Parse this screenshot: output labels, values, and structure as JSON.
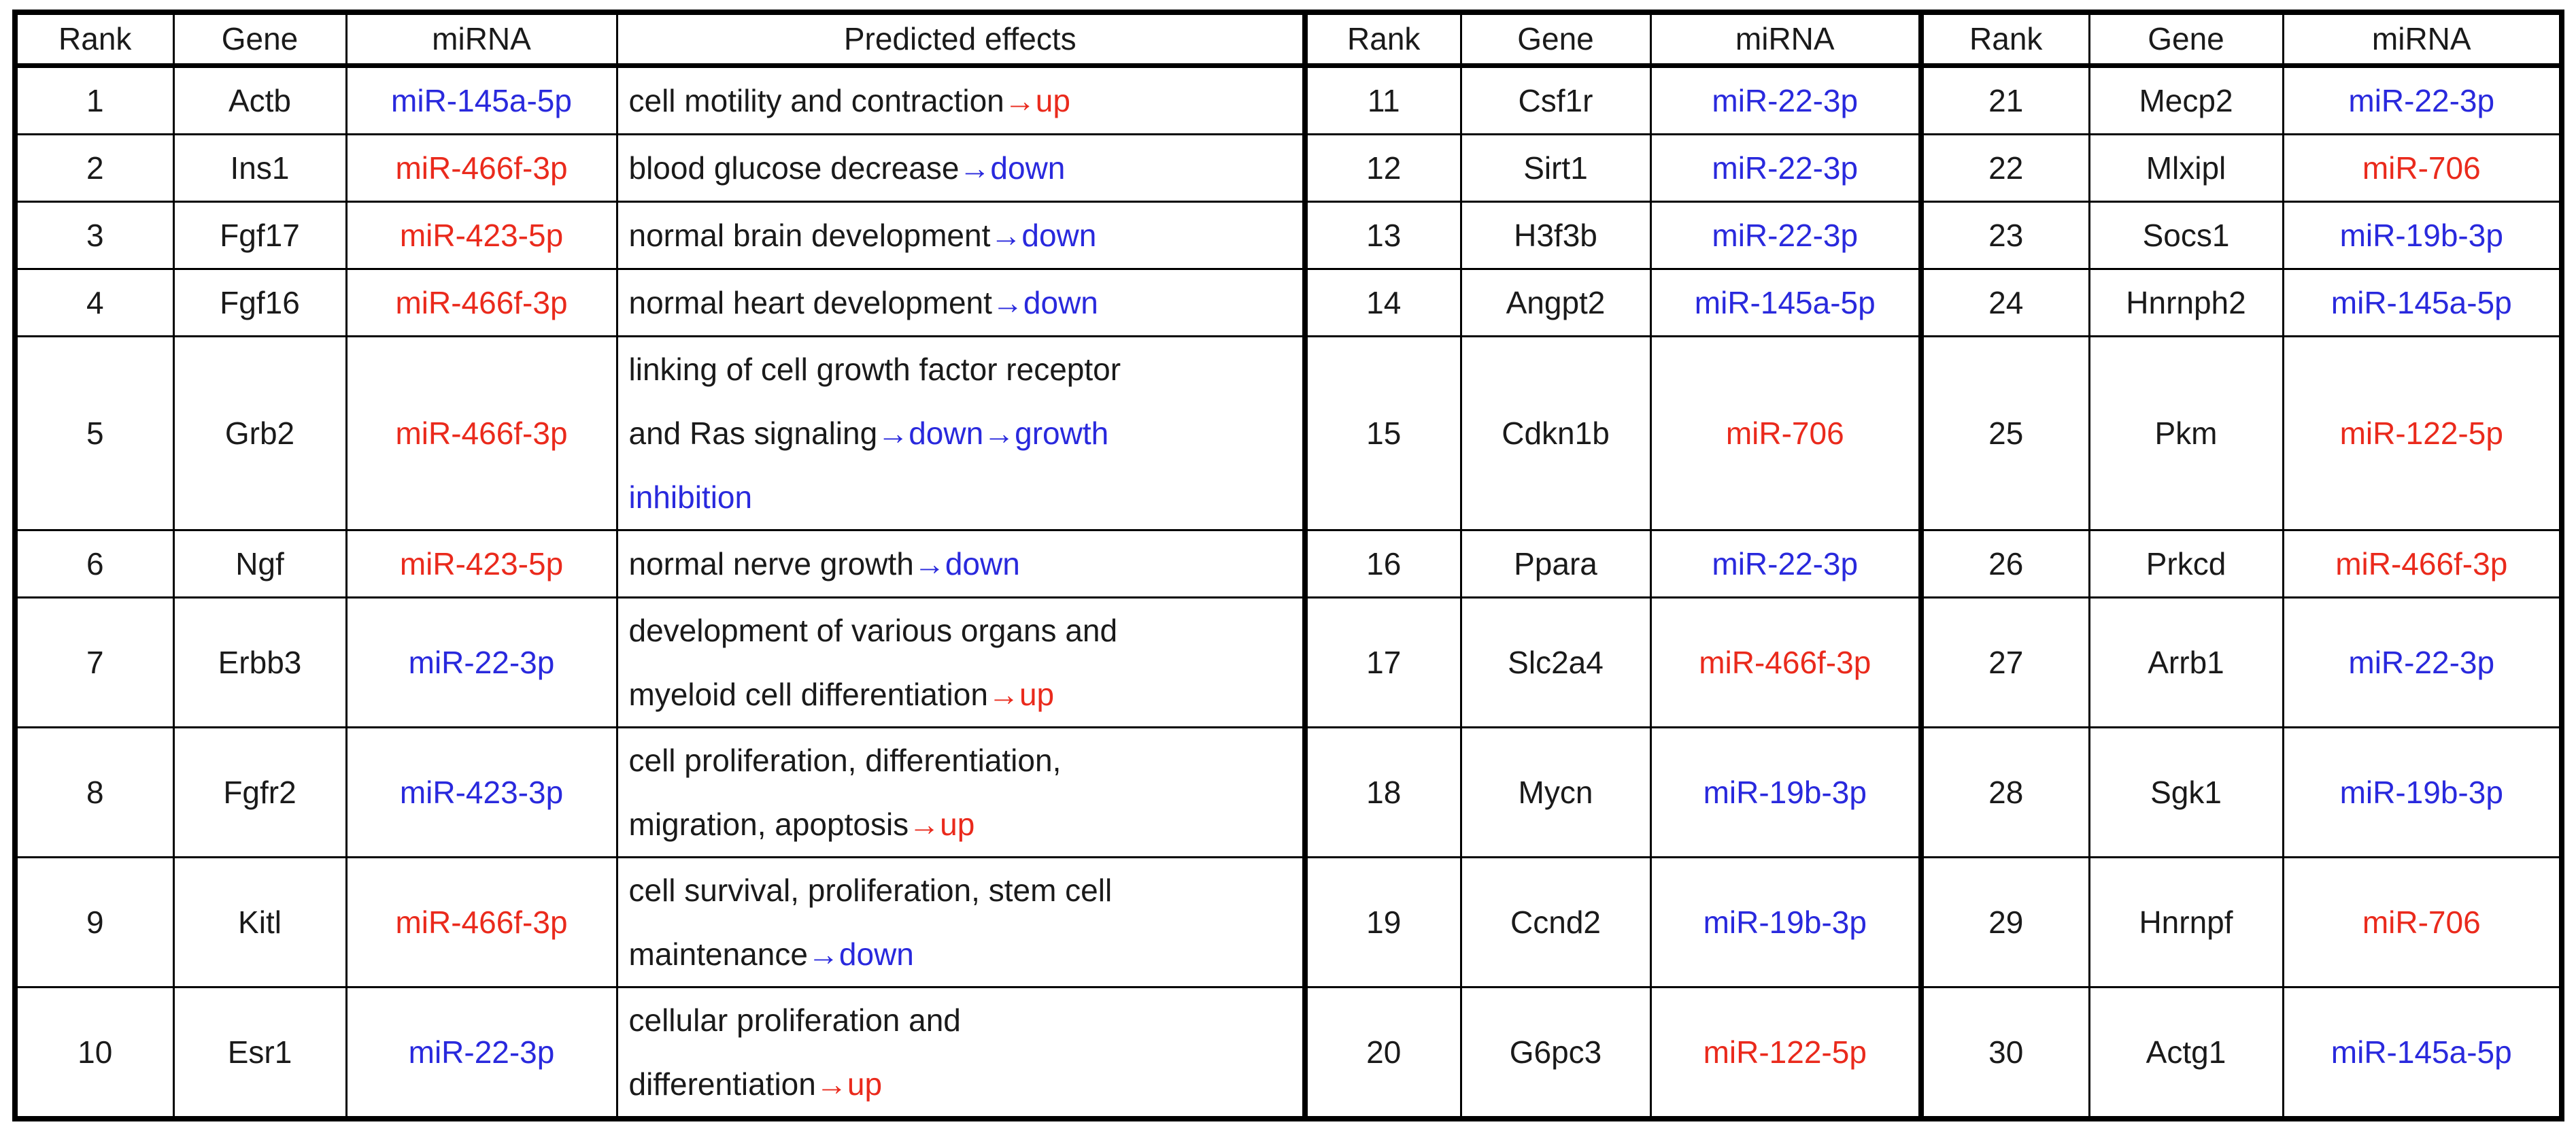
{
  "colors": {
    "ink": "#1a1a1a",
    "blue": "#2929dd",
    "red": "#ea2a1c",
    "border": "#000000",
    "background": "#ffffff"
  },
  "headers": [
    "Rank",
    "Gene",
    "miRNA",
    "Predicted effects",
    "Rank",
    "Gene",
    "miRNA",
    "Rank",
    "Gene",
    "miRNA"
  ],
  "rows": [
    {
      "left": {
        "rank": "1",
        "gene": "Actb",
        "mirna": "miR-145a-5p",
        "mirna_color": "blue",
        "effects": [
          [
            {
              "t": "cell motility and contraction",
              "c": "ink"
            },
            {
              "t": "→up",
              "c": "red"
            }
          ]
        ]
      },
      "mid": {
        "rank": "11",
        "gene": "Csf1r",
        "mirna": "miR-22-3p",
        "mirna_color": "blue"
      },
      "right": {
        "rank": "21",
        "gene": "Mecp2",
        "mirna": "miR-22-3p",
        "mirna_color": "blue"
      }
    },
    {
      "left": {
        "rank": "2",
        "gene": "Ins1",
        "mirna": "miR-466f-3p",
        "mirna_color": "red",
        "effects": [
          [
            {
              "t": "blood glucose decrease",
              "c": "ink"
            },
            {
              "t": "→down",
              "c": "blue"
            }
          ]
        ]
      },
      "mid": {
        "rank": "12",
        "gene": "Sirt1",
        "mirna": "miR-22-3p",
        "mirna_color": "blue"
      },
      "right": {
        "rank": "22",
        "gene": "Mlxipl",
        "mirna": "miR-706",
        "mirna_color": "red"
      }
    },
    {
      "left": {
        "rank": "3",
        "gene": "Fgf17",
        "mirna": "miR-423-5p",
        "mirna_color": "red",
        "effects": [
          [
            {
              "t": "normal brain development",
              "c": "ink"
            },
            {
              "t": "→down",
              "c": "blue"
            }
          ]
        ]
      },
      "mid": {
        "rank": "13",
        "gene": "H3f3b",
        "mirna": "miR-22-3p",
        "mirna_color": "blue"
      },
      "right": {
        "rank": "23",
        "gene": "Socs1",
        "mirna": "miR-19b-3p",
        "mirna_color": "blue"
      }
    },
    {
      "left": {
        "rank": "4",
        "gene": "Fgf16",
        "mirna": "miR-466f-3p",
        "mirna_color": "red",
        "effects": [
          [
            {
              "t": "normal heart development",
              "c": "ink"
            },
            {
              "t": "→down",
              "c": "blue"
            }
          ]
        ]
      },
      "mid": {
        "rank": "14",
        "gene": "Angpt2",
        "mirna": "miR-145a-5p",
        "mirna_color": "blue"
      },
      "right": {
        "rank": "24",
        "gene": "Hnrnph2",
        "mirna": "miR-145a-5p",
        "mirna_color": "blue"
      }
    },
    {
      "left": {
        "rank": "5",
        "gene": "Grb2",
        "mirna": "miR-466f-3p",
        "mirna_color": "red",
        "effects": [
          [
            {
              "t": "linking of cell growth factor receptor",
              "c": "ink"
            }
          ],
          [
            {
              "t": "and Ras signaling",
              "c": "ink"
            },
            {
              "t": "→down",
              "c": "blue"
            },
            {
              "t": "→growth",
              "c": "blue"
            }
          ],
          [
            {
              "t": "inhibition",
              "c": "blue"
            }
          ]
        ]
      },
      "mid": {
        "rank": "15",
        "gene": "Cdkn1b",
        "mirna": "miR-706",
        "mirna_color": "red"
      },
      "right": {
        "rank": "25",
        "gene": "Pkm",
        "mirna": "miR-122-5p",
        "mirna_color": "red"
      }
    },
    {
      "left": {
        "rank": "6",
        "gene": "Ngf",
        "mirna": "miR-423-5p",
        "mirna_color": "red",
        "effects": [
          [
            {
              "t": "normal nerve growth",
              "c": "ink"
            },
            {
              "t": "→down",
              "c": "blue"
            }
          ]
        ]
      },
      "mid": {
        "rank": "16",
        "gene": "Ppara",
        "mirna": "miR-22-3p",
        "mirna_color": "blue"
      },
      "right": {
        "rank": "26",
        "gene": "Prkcd",
        "mirna": "miR-466f-3p",
        "mirna_color": "red"
      }
    },
    {
      "left": {
        "rank": "7",
        "gene": "Erbb3",
        "mirna": "miR-22-3p",
        "mirna_color": "blue",
        "effects": [
          [
            {
              "t": "development of various organs and",
              "c": "ink"
            }
          ],
          [
            {
              "t": "myeloid cell differentiation",
              "c": "ink"
            },
            {
              "t": "→up",
              "c": "red"
            }
          ]
        ]
      },
      "mid": {
        "rank": "17",
        "gene": "Slc2a4",
        "mirna": "miR-466f-3p",
        "mirna_color": "red"
      },
      "right": {
        "rank": "27",
        "gene": "Arrb1",
        "mirna": "miR-22-3p",
        "mirna_color": "blue"
      }
    },
    {
      "left": {
        "rank": "8",
        "gene": "Fgfr2",
        "mirna": "miR-423-3p",
        "mirna_color": "blue",
        "effects": [
          [
            {
              "t": "cell proliferation, differentiation,",
              "c": "ink"
            }
          ],
          [
            {
              "t": "migration, apoptosis",
              "c": "ink"
            },
            {
              "t": "→up",
              "c": "red"
            }
          ]
        ]
      },
      "mid": {
        "rank": "18",
        "gene": "Mycn",
        "mirna": "miR-19b-3p",
        "mirna_color": "blue"
      },
      "right": {
        "rank": "28",
        "gene": "Sgk1",
        "mirna": "miR-19b-3p",
        "mirna_color": "blue"
      }
    },
    {
      "left": {
        "rank": "9",
        "gene": "Kitl",
        "mirna": "miR-466f-3p",
        "mirna_color": "red",
        "effects": [
          [
            {
              "t": "cell survival, proliferation, stem cell",
              "c": "ink"
            }
          ],
          [
            {
              "t": "maintenance",
              "c": "ink"
            },
            {
              "t": "→down",
              "c": "blue"
            }
          ]
        ]
      },
      "mid": {
        "rank": "19",
        "gene": "Ccnd2",
        "mirna": "miR-19b-3p",
        "mirna_color": "blue"
      },
      "right": {
        "rank": "29",
        "gene": "Hnrnpf",
        "mirna": "miR-706",
        "mirna_color": "red"
      }
    },
    {
      "left": {
        "rank": "10",
        "gene": "Esr1",
        "mirna": "miR-22-3p",
        "mirna_color": "blue",
        "effects": [
          [
            {
              "t": "cellular proliferation and",
              "c": "ink"
            }
          ],
          [
            {
              "t": "differentiation",
              "c": "ink"
            },
            {
              "t": "→up",
              "c": "red"
            }
          ]
        ]
      },
      "mid": {
        "rank": "20",
        "gene": "G6pc3",
        "mirna": "miR-122-5p",
        "mirna_color": "red"
      },
      "right": {
        "rank": "30",
        "gene": "Actg1",
        "mirna": "miR-145a-5p",
        "mirna_color": "blue"
      }
    }
  ]
}
